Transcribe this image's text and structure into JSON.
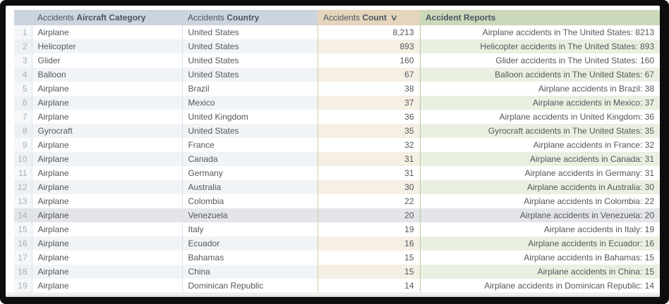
{
  "colors": {
    "window-frame": "#0d0d0d",
    "header-blue": "#ccd5de",
    "header-tan": "#e5d5bc",
    "header-green": "#cbd8ba",
    "row-alt-blue": "#f1f4f7",
    "row-alt-tan": "#f6efe4",
    "row-alt-green": "#eaf0e1",
    "row-highlight": "#e3e5e8",
    "border-gray": "#dde1e6",
    "border-tan": "#d8c7a3",
    "border-green": "#b7c9a2",
    "text-body": "#53575c",
    "text-header": "#4a5461",
    "text-rownum": "#a8b0ba"
  },
  "icons": {
    "sort_desc_glyph": "∨",
    "sort_desc_name": "chevron-down-icon"
  },
  "table": {
    "columns": [
      {
        "id": "num",
        "prefix": "",
        "bold": ""
      },
      {
        "id": "category",
        "prefix": "Accidents ",
        "bold": "Aircraft Category"
      },
      {
        "id": "country",
        "prefix": "Accidents ",
        "bold": "Country"
      },
      {
        "id": "count",
        "prefix": "Accidents ",
        "bold": "Count",
        "sort": "desc"
      },
      {
        "id": "reports",
        "prefix": "",
        "bold": "Accident Reports"
      }
    ],
    "highlighted_row_number": 14,
    "rows": [
      {
        "num": 1,
        "category": "Airplane",
        "country": "United States",
        "count": "8,213",
        "report": "Airplane accidents in The United States: 8213"
      },
      {
        "num": 2,
        "category": "Helicopter",
        "country": "United States",
        "count": "893",
        "report": "Helicopter accidents in The United States: 893"
      },
      {
        "num": 3,
        "category": "Glider",
        "country": "United States",
        "count": "160",
        "report": "Glider accidents in The United States: 160"
      },
      {
        "num": 4,
        "category": "Balloon",
        "country": "United States",
        "count": "67",
        "report": "Balloon accidents in The United States: 67"
      },
      {
        "num": 5,
        "category": "Airplane",
        "country": "Brazil",
        "count": "38",
        "report": "Airplane accidents in Brazil: 38"
      },
      {
        "num": 6,
        "category": "Airplane",
        "country": "Mexico",
        "count": "37",
        "report": "Airplane accidents in Mexico: 37"
      },
      {
        "num": 7,
        "category": "Airplane",
        "country": "United Kingdom",
        "count": "36",
        "report": "Airplane accidents in United Kingdom: 36"
      },
      {
        "num": 8,
        "category": "Gyrocraft",
        "country": "United States",
        "count": "35",
        "report": "Gyrocraft accidents in The United States: 35"
      },
      {
        "num": 9,
        "category": "Airplane",
        "country": "France",
        "count": "32",
        "report": "Airplane accidents in France: 32"
      },
      {
        "num": 10,
        "category": "Airplane",
        "country": "Canada",
        "count": "31",
        "report": "Airplane accidents in Canada: 31"
      },
      {
        "num": 11,
        "category": "Airplane",
        "country": "Germany",
        "count": "31",
        "report": "Airplane accidents in Germany: 31"
      },
      {
        "num": 12,
        "category": "Airplane",
        "country": "Australia",
        "count": "30",
        "report": "Airplane accidents in Australia: 30"
      },
      {
        "num": 13,
        "category": "Airplane",
        "country": "Colombia",
        "count": "22",
        "report": "Airplane accidents in Colombia: 22"
      },
      {
        "num": 14,
        "category": "Airplane",
        "country": "Venezuela",
        "count": "20",
        "report": "Airplane accidents in Venezuela: 20"
      },
      {
        "num": 15,
        "category": "Airplane",
        "country": "Italy",
        "count": "19",
        "report": "Airplane accidents in Italy: 19"
      },
      {
        "num": 16,
        "category": "Airplane",
        "country": "Ecuador",
        "count": "16",
        "report": "Airplane accidents in Ecuador: 16"
      },
      {
        "num": 17,
        "category": "Airplane",
        "country": "Bahamas",
        "count": "15",
        "report": "Airplane accidents in Bahamas: 15"
      },
      {
        "num": 18,
        "category": "Airplane",
        "country": "China",
        "count": "15",
        "report": "Airplane accidents in China: 15"
      },
      {
        "num": 19,
        "category": "Airplane",
        "country": "Dominican Republic",
        "count": "14",
        "report": "Airplane accidents in Dominican Republic: 14"
      }
    ]
  }
}
